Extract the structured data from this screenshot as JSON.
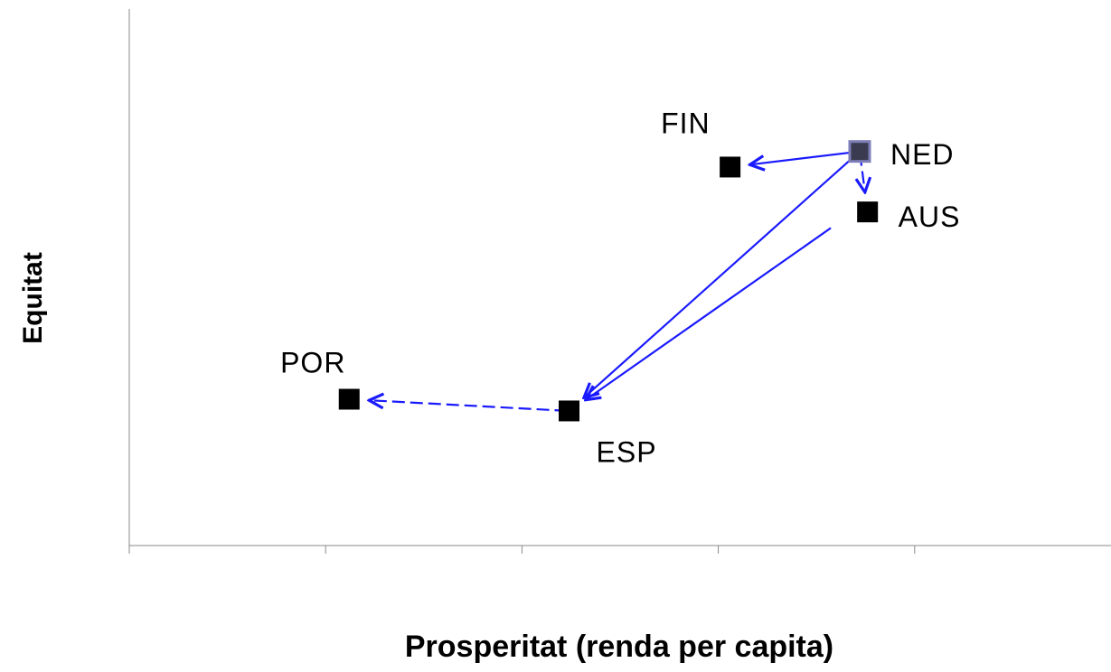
{
  "chart_data": {
    "type": "scatter",
    "xlabel": "Prosperitat (renda per capita)",
    "ylabel": "Equitat",
    "labels": [
      "FIN",
      "NED",
      "AUS",
      "POR",
      "ESP"
    ],
    "x": [
      3.06,
      3.72,
      3.76,
      1.12,
      2.24
    ],
    "values": [
      1.94,
      2.02,
      1.71,
      0.75,
      0.69
    ],
    "color": "#000000",
    "xlim": [
      0,
      5
    ],
    "xticks": [
      0,
      1,
      2,
      3,
      4
    ],
    "ylim": [
      0,
      2.75
    ],
    "grid": false
  }
}
